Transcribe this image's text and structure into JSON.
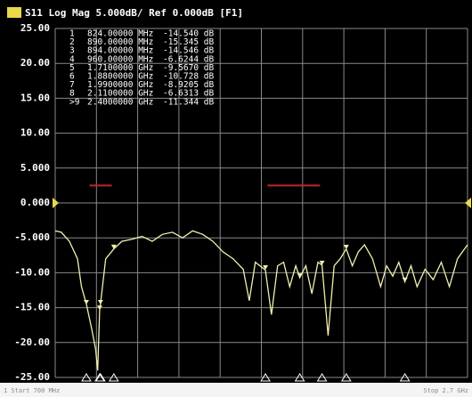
{
  "chart_data": {
    "type": "line",
    "title": "S11 Log Mag 5.000dB/ Ref 0.000dB [F1]",
    "footer_left": "1 Start 700 MHz",
    "footer_right": "Stop 2.7 GHz",
    "xlim": [
      0.67,
      2.71
    ],
    "ylim": [
      -25,
      25
    ],
    "yticks": [
      {
        "value": 25,
        "label": "25.00"
      },
      {
        "value": 20,
        "label": "20.00"
      },
      {
        "value": 15,
        "label": "15.00"
      },
      {
        "value": 10,
        "label": "10.00"
      },
      {
        "value": 5,
        "label": "5.000"
      },
      {
        "value": 0,
        "label": "0.000"
      },
      {
        "value": -5,
        "label": "-5.000"
      },
      {
        "value": -10,
        "label": "-10.00"
      },
      {
        "value": -15,
        "label": "-15.00"
      },
      {
        "value": -20,
        "label": "-20.00"
      },
      {
        "value": -25,
        "label": "-25.00"
      }
    ],
    "x_divisions": 10,
    "grid": true,
    "ref_level": 0,
    "series": [
      {
        "color": "#f2f0b0",
        "x": [
          0.67,
          0.7,
          0.74,
          0.78,
          0.8,
          0.824,
          0.85,
          0.87,
          0.88,
          0.89,
          0.894,
          0.92,
          0.96,
          1.0,
          1.05,
          1.1,
          1.15,
          1.2,
          1.25,
          1.3,
          1.35,
          1.4,
          1.45,
          1.5,
          1.55,
          1.6,
          1.63,
          1.66,
          1.71,
          1.74,
          1.77,
          1.8,
          1.83,
          1.86,
          1.88,
          1.91,
          1.94,
          1.97,
          1.99,
          2.02,
          2.05,
          2.08,
          2.11,
          2.14,
          2.17,
          2.2,
          2.24,
          2.28,
          2.31,
          2.34,
          2.37,
          2.4,
          2.43,
          2.46,
          2.5,
          2.54,
          2.58,
          2.62,
          2.66,
          2.71
        ],
        "values": [
          -4.0,
          -4.2,
          -5.5,
          -8,
          -12,
          -14.5,
          -18,
          -21,
          -24,
          -15.3,
          -14.5,
          -8,
          -6.6,
          -5.5,
          -5.2,
          -4.8,
          -5.5,
          -4.5,
          -4.2,
          -5.0,
          -4.0,
          -4.5,
          -5.5,
          -7.0,
          -8.0,
          -9.5,
          -14,
          -8.5,
          -9.6,
          -16,
          -9,
          -8.5,
          -12,
          -9,
          -10.7,
          -9,
          -13,
          -8.5,
          -8.9,
          -19,
          -9,
          -8,
          -6.6,
          -9,
          -7,
          -6,
          -8,
          -12,
          -9,
          -10.5,
          -8.5,
          -11.3,
          -9,
          -12,
          -9.5,
          -11,
          -8.5,
          -12,
          -8,
          -6
        ]
      }
    ],
    "limit_lines": [
      {
        "color": "#c0262a",
        "x": [
          0.84,
          0.95
        ],
        "value": 2.5
      },
      {
        "color": "#c0262a",
        "x": [
          1.72,
          1.98
        ],
        "value": 2.5
      }
    ],
    "markers": [
      {
        "id": "1",
        "x": 0.824,
        "stimulus": "824.00000 MHz",
        "value": -14.54,
        "value_label": "-14.540 dB"
      },
      {
        "id": "2",
        "x": 0.89,
        "stimulus": "890.00000 MHz",
        "value": -15.345,
        "value_label": "-15.345 dB"
      },
      {
        "id": "3",
        "x": 0.894,
        "stimulus": "894.00000 MHz",
        "value": -14.546,
        "value_label": "-14.546 dB"
      },
      {
        "id": "4",
        "x": 0.96,
        "stimulus": "960.00000 MHz",
        "value": -6.6244,
        "value_label": "-6.6244 dB"
      },
      {
        "id": "5",
        "x": 1.71,
        "stimulus": "1.7100000 GHz",
        "value": -9.567,
        "value_label": "-9.5670 dB"
      },
      {
        "id": "6",
        "x": 1.88,
        "stimulus": "1.8800000 GHz",
        "value": -10.728,
        "value_label": "-10.728 dB"
      },
      {
        "id": "7",
        "x": 1.99,
        "stimulus": "1.9900000 GHz",
        "value": -8.9205,
        "value_label": "-8.9205 dB"
      },
      {
        "id": "8",
        "x": 2.11,
        "stimulus": "2.1100000 GHz",
        "value": -6.6313,
        "value_label": "-6.6313 dB"
      },
      {
        "id": ">9",
        "x": 2.4,
        "stimulus": "2.4000000 GHz",
        "value": -11.344,
        "value_label": "-11.344 dB"
      }
    ]
  }
}
